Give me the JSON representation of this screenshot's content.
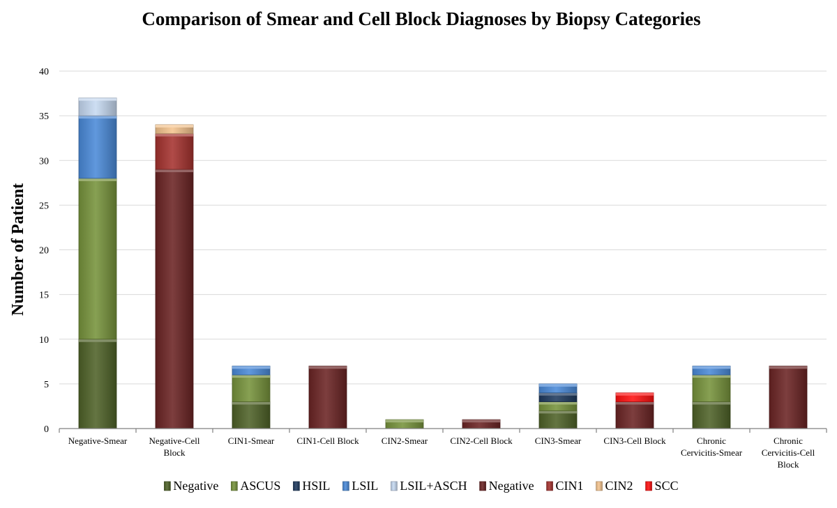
{
  "chart_data": {
    "type": "bar",
    "stacked": true,
    "title": "Comparison of Smear and Cell Block Diagnoses by Biopsy Categories",
    "xlabel": "",
    "ylabel": "Number of Patient",
    "ylim": [
      0,
      40
    ],
    "yticks": [
      0,
      5,
      10,
      15,
      20,
      25,
      30,
      35,
      40
    ],
    "grid": true,
    "legend_position": "bottom",
    "categories": [
      "Negative-Smear",
      "Negative-Cell Block",
      "CIN1-Smear",
      "CIN1-Cell Block",
      "CIN2-Smear",
      "CIN2-Cell Block",
      "CIN3-Smear",
      "CIN3-Cell Block",
      "Chronic Cervicitis-Smear",
      "Chronic Cervicitis-Cell Block"
    ],
    "category_lines": [
      [
        "Negative-Smear"
      ],
      [
        "Negative-Cell",
        "Block"
      ],
      [
        "CIN1-Smear"
      ],
      [
        "CIN1-Cell Block"
      ],
      [
        "CIN2-Smear"
      ],
      [
        "CIN2-Cell Block"
      ],
      [
        "CIN3-Smear"
      ],
      [
        "CIN3-Cell Block"
      ],
      [
        "Chronic",
        "Cervicitis-Smear"
      ],
      [
        "Chronic",
        "Cervicitis-Cell",
        "Block"
      ]
    ],
    "series": [
      {
        "name": "Negative",
        "group": "smear",
        "color": "#4f6228",
        "values": [
          10,
          0,
          3,
          0,
          0,
          0,
          2,
          0,
          3,
          0
        ]
      },
      {
        "name": "ASCUS",
        "group": "smear",
        "color": "#77933c",
        "values": [
          18,
          0,
          3,
          0,
          1,
          0,
          1,
          0,
          3,
          0
        ]
      },
      {
        "name": "HSIL",
        "group": "smear",
        "color": "#1f3a5f",
        "values": [
          0,
          0,
          0,
          0,
          0,
          0,
          1,
          0,
          0,
          0
        ]
      },
      {
        "name": "LSIL",
        "group": "smear",
        "color": "#4a8ad8",
        "values": [
          7,
          0,
          1,
          0,
          0,
          0,
          1,
          0,
          1,
          0
        ]
      },
      {
        "name": "LSIL+ASCH",
        "group": "smear",
        "color": "#c6d9f1",
        "values": [
          2,
          0,
          0,
          0,
          0,
          0,
          0,
          0,
          0,
          0
        ]
      },
      {
        "name": "Negative",
        "group": "cell",
        "color": "#6b2424",
        "values": [
          0,
          29,
          0,
          7,
          0,
          1,
          0,
          3,
          0,
          7
        ]
      },
      {
        "name": "CIN1",
        "group": "cell",
        "color": "#a5332f",
        "values": [
          0,
          4,
          0,
          0,
          0,
          0,
          0,
          0,
          0,
          0
        ]
      },
      {
        "name": "CIN2",
        "group": "cell",
        "color": "#f5c48e",
        "values": [
          0,
          1,
          0,
          0,
          0,
          0,
          0,
          0,
          0,
          0
        ]
      },
      {
        "name": "SCC",
        "group": "cell",
        "color": "#ff1010",
        "values": [
          0,
          0,
          0,
          0,
          0,
          0,
          0,
          1,
          0,
          0
        ]
      }
    ]
  }
}
